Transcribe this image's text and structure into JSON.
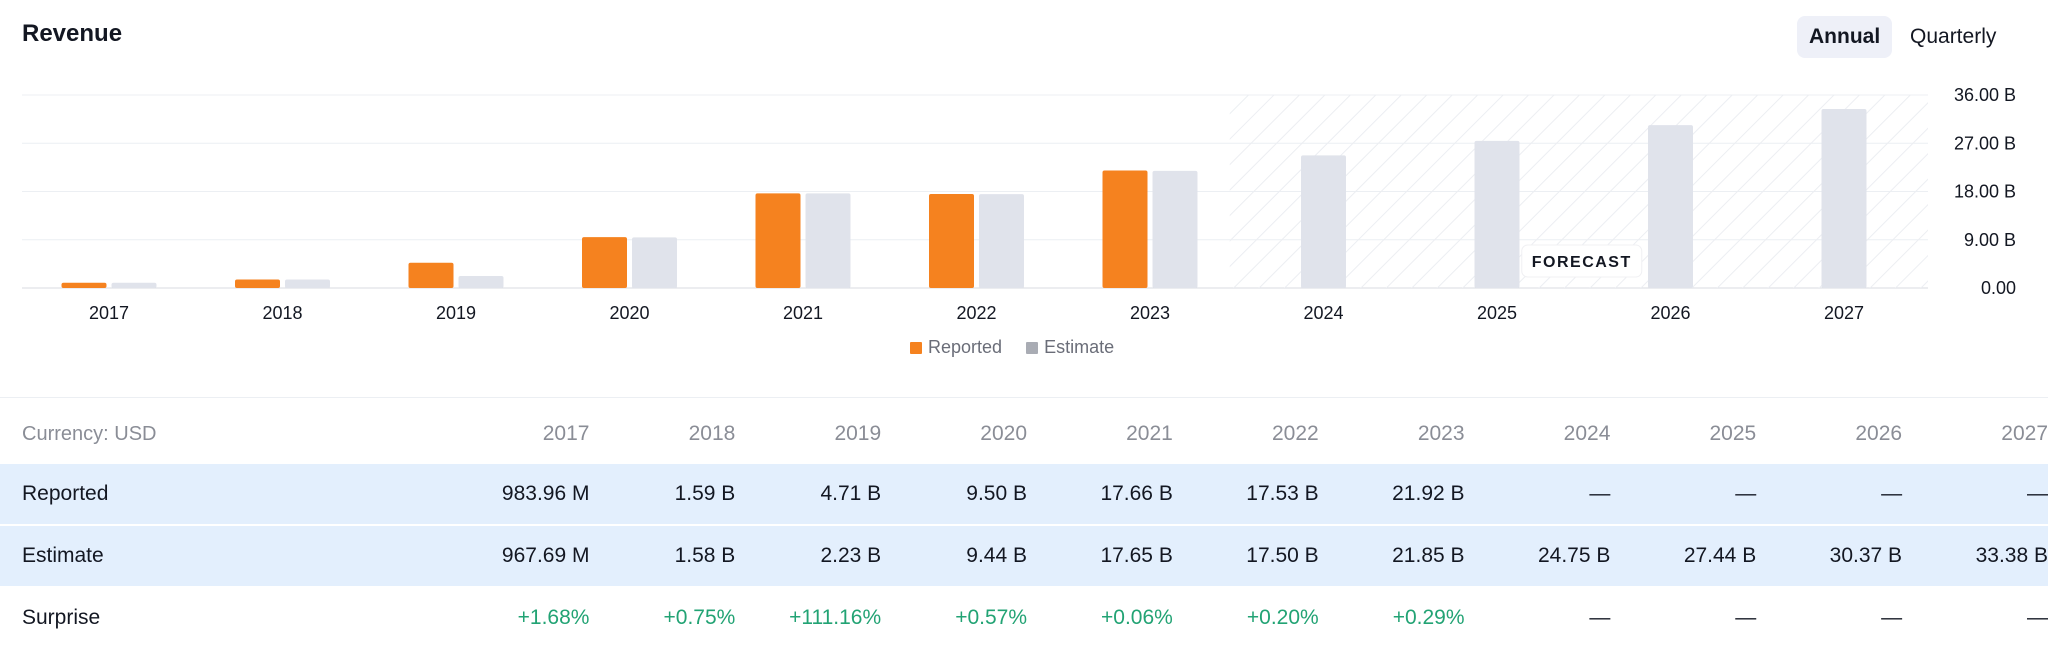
{
  "header": {
    "title": "Revenue",
    "toggle_annual": "Annual",
    "toggle_quarterly": "Quarterly"
  },
  "chart_data": {
    "type": "bar",
    "categories": [
      "2017",
      "2018",
      "2019",
      "2020",
      "2021",
      "2022",
      "2023",
      "2024",
      "2025",
      "2026",
      "2027"
    ],
    "series": [
      {
        "name": "Reported",
        "color": "#f5821f",
        "values": [
          0.98396,
          1.59,
          4.71,
          9.5,
          17.66,
          17.53,
          21.92,
          null,
          null,
          null,
          null
        ]
      },
      {
        "name": "Estimate",
        "color": "#e0e3eb",
        "values": [
          0.96769,
          1.58,
          2.23,
          9.44,
          17.65,
          17.5,
          21.85,
          24.75,
          27.44,
          30.37,
          33.38
        ]
      }
    ],
    "ylim": [
      0,
      36
    ],
    "y_ticks": [
      "36.00 B",
      "27.00 B",
      "18.00 B",
      "9.00 B",
      "0.00"
    ],
    "forecast_label": "FORECAST",
    "forecast_start_category": "2024",
    "grid": true,
    "legend_position": "bottom-center"
  },
  "legend": {
    "reported": "Reported",
    "estimate": "Estimate",
    "reported_color": "#f5821f",
    "estimate_swatch_color": "#a9acb4"
  },
  "table": {
    "currency_label": "Currency: USD",
    "years": [
      "2017",
      "2018",
      "2019",
      "2020",
      "2021",
      "2022",
      "2023",
      "2024",
      "2025",
      "2026",
      "2027"
    ],
    "rows": [
      {
        "label": "Reported",
        "values": [
          "983.96 M",
          "1.59 B",
          "4.71 B",
          "9.50 B",
          "17.66 B",
          "17.53 B",
          "21.92 B",
          "—",
          "—",
          "—",
          "—"
        ]
      },
      {
        "label": "Estimate",
        "values": [
          "967.69 M",
          "1.58 B",
          "2.23 B",
          "9.44 B",
          "17.65 B",
          "17.50 B",
          "21.85 B",
          "24.75 B",
          "27.44 B",
          "30.37 B",
          "33.38 B"
        ]
      },
      {
        "label": "Surprise",
        "values": [
          "+1.68%",
          "+0.75%",
          "+111.16%",
          "+0.57%",
          "+0.06%",
          "+0.20%",
          "+0.29%",
          "—",
          "—",
          "—",
          "—"
        ]
      }
    ]
  }
}
